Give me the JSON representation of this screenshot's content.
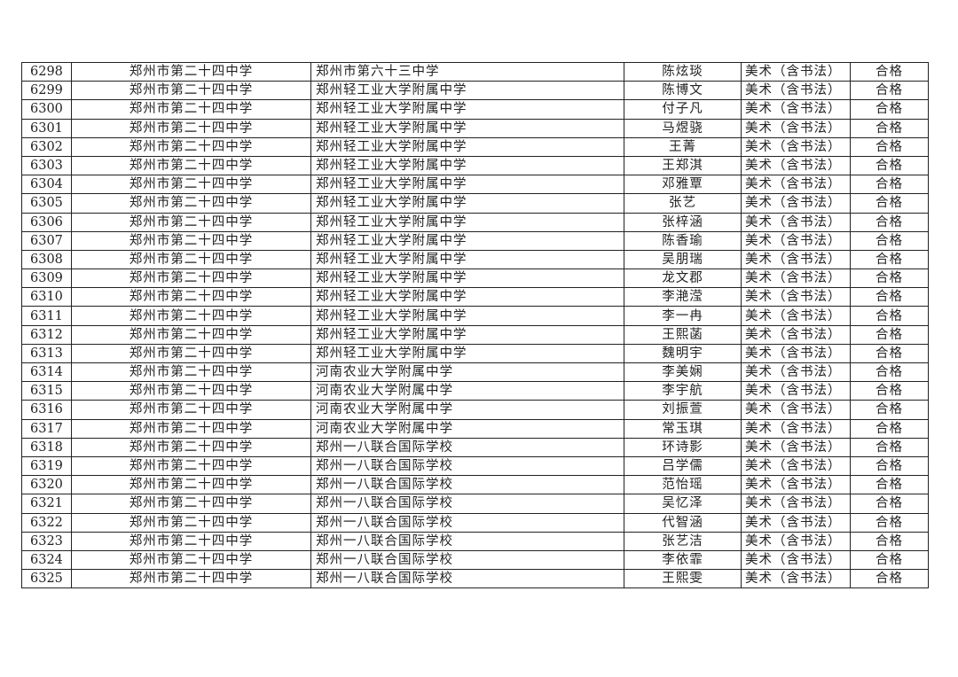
{
  "rows": [
    {
      "id": "6298",
      "school": "郑州市第二十四中学",
      "from": "郑州市第六十三中学",
      "name": "陈炫琰",
      "subject": "美术（含书法）",
      "result": "合格"
    },
    {
      "id": "6299",
      "school": "郑州市第二十四中学",
      "from": "郑州轻工业大学附属中学",
      "name": "陈博文",
      "subject": "美术（含书法）",
      "result": "合格"
    },
    {
      "id": "6300",
      "school": "郑州市第二十四中学",
      "from": "郑州轻工业大学附属中学",
      "name": "付子凡",
      "subject": "美术（含书法）",
      "result": "合格"
    },
    {
      "id": "6301",
      "school": "郑州市第二十四中学",
      "from": "郑州轻工业大学附属中学",
      "name": "马煜骁",
      "subject": "美术（含书法）",
      "result": "合格"
    },
    {
      "id": "6302",
      "school": "郑州市第二十四中学",
      "from": "郑州轻工业大学附属中学",
      "name": "王菁",
      "subject": "美术（含书法）",
      "result": "合格"
    },
    {
      "id": "6303",
      "school": "郑州市第二十四中学",
      "from": "郑州轻工业大学附属中学",
      "name": "王郑淇",
      "subject": "美术（含书法）",
      "result": "合格"
    },
    {
      "id": "6304",
      "school": "郑州市第二十四中学",
      "from": "郑州轻工业大学附属中学",
      "name": "邓雅覃",
      "subject": "美术（含书法）",
      "result": "合格"
    },
    {
      "id": "6305",
      "school": "郑州市第二十四中学",
      "from": "郑州轻工业大学附属中学",
      "name": "张艺",
      "subject": "美术（含书法）",
      "result": "合格"
    },
    {
      "id": "6306",
      "school": "郑州市第二十四中学",
      "from": "郑州轻工业大学附属中学",
      "name": "张梓涵",
      "subject": "美术（含书法）",
      "result": "合格"
    },
    {
      "id": "6307",
      "school": "郑州市第二十四中学",
      "from": "郑州轻工业大学附属中学",
      "name": "陈香瑜",
      "subject": "美术（含书法）",
      "result": "合格"
    },
    {
      "id": "6308",
      "school": "郑州市第二十四中学",
      "from": "郑州轻工业大学附属中学",
      "name": "吴朋瑞",
      "subject": "美术（含书法）",
      "result": "合格"
    },
    {
      "id": "6309",
      "school": "郑州市第二十四中学",
      "from": "郑州轻工业大学附属中学",
      "name": "龙文郡",
      "subject": "美术（含书法）",
      "result": "合格"
    },
    {
      "id": "6310",
      "school": "郑州市第二十四中学",
      "from": "郑州轻工业大学附属中学",
      "name": "李滟滢",
      "subject": "美术（含书法）",
      "result": "合格"
    },
    {
      "id": "6311",
      "school": "郑州市第二十四中学",
      "from": "郑州轻工业大学附属中学",
      "name": "李一冉",
      "subject": "美术（含书法）",
      "result": "合格"
    },
    {
      "id": "6312",
      "school": "郑州市第二十四中学",
      "from": "郑州轻工业大学附属中学",
      "name": "王熙菡",
      "subject": "美术（含书法）",
      "result": "合格"
    },
    {
      "id": "6313",
      "school": "郑州市第二十四中学",
      "from": "郑州轻工业大学附属中学",
      "name": "魏明宇",
      "subject": "美术（含书法）",
      "result": "合格"
    },
    {
      "id": "6314",
      "school": "郑州市第二十四中学",
      "from": "河南农业大学附属中学",
      "name": "李美娴",
      "subject": "美术（含书法）",
      "result": "合格"
    },
    {
      "id": "6315",
      "school": "郑州市第二十四中学",
      "from": "河南农业大学附属中学",
      "name": "李宇航",
      "subject": "美术（含书法）",
      "result": "合格"
    },
    {
      "id": "6316",
      "school": "郑州市第二十四中学",
      "from": "河南农业大学附属中学",
      "name": "刘振萱",
      "subject": "美术（含书法）",
      "result": "合格"
    },
    {
      "id": "6317",
      "school": "郑州市第二十四中学",
      "from": "河南农业大学附属中学",
      "name": "常玉琪",
      "subject": "美术（含书法）",
      "result": "合格"
    },
    {
      "id": "6318",
      "school": "郑州市第二十四中学",
      "from": "郑州一八联合国际学校",
      "name": "环诗影",
      "subject": "美术（含书法）",
      "result": "合格"
    },
    {
      "id": "6319",
      "school": "郑州市第二十四中学",
      "from": "郑州一八联合国际学校",
      "name": "吕学儒",
      "subject": "美术（含书法）",
      "result": "合格"
    },
    {
      "id": "6320",
      "school": "郑州市第二十四中学",
      "from": "郑州一八联合国际学校",
      "name": "范怡瑶",
      "subject": "美术（含书法）",
      "result": "合格"
    },
    {
      "id": "6321",
      "school": "郑州市第二十四中学",
      "from": "郑州一八联合国际学校",
      "name": "吴忆泽",
      "subject": "美术（含书法）",
      "result": "合格"
    },
    {
      "id": "6322",
      "school": "郑州市第二十四中学",
      "from": "郑州一八联合国际学校",
      "name": "代智涵",
      "subject": "美术（含书法）",
      "result": "合格"
    },
    {
      "id": "6323",
      "school": "郑州市第二十四中学",
      "from": "郑州一八联合国际学校",
      "name": "张艺洁",
      "subject": "美术（含书法）",
      "result": "合格"
    },
    {
      "id": "6324",
      "school": "郑州市第二十四中学",
      "from": "郑州一八联合国际学校",
      "name": "李依霏",
      "subject": "美术（含书法）",
      "result": "合格"
    },
    {
      "id": "6325",
      "school": "郑州市第二十四中学",
      "from": "郑州一八联合国际学校",
      "name": "王熙雯",
      "subject": "美术（含书法）",
      "result": "合格"
    }
  ]
}
